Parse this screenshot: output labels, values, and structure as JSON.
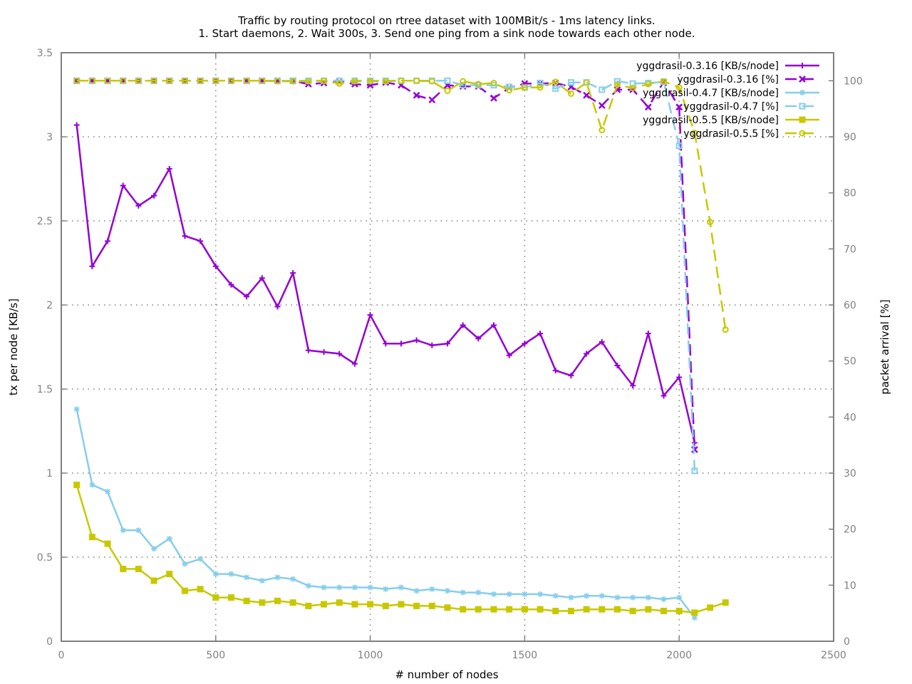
{
  "chart_data": {
    "type": "line",
    "title_lines": [
      "Traffic by routing protocol on rtree dataset with 100MBit/s - 1ms latency links.",
      "1. Start daemons, 2. Wait 300s, 3. Send one ping from a sink node towards each other node."
    ],
    "xlabel": "# number of nodes",
    "ylabel": "tx per node [KB/s]",
    "y2label": "packet arrival [%]",
    "xlim": [
      0,
      2500
    ],
    "ylim": [
      0,
      3.5
    ],
    "y2lim": [
      0,
      105
    ],
    "x_ticks": [
      "0",
      "500",
      "1000",
      "1500",
      "2000",
      "2500"
    ],
    "y_ticks": [
      "0",
      "0.5",
      "1",
      "1.5",
      "2",
      "2.5",
      "3",
      "3.5"
    ],
    "y2_ticks": [
      "0",
      "10",
      "20",
      "30",
      "40",
      "50",
      "60",
      "70",
      "80",
      "90",
      "100"
    ],
    "grid": true,
    "legend_position": "top-right",
    "series": [
      {
        "name": "yggdrasil-0.3.16 [KB/s/node]",
        "axis": "y",
        "color": "#9400d3",
        "style": "solid",
        "marker": "plus",
        "x": [
          50,
          100,
          150,
          200,
          250,
          300,
          350,
          400,
          450,
          500,
          550,
          600,
          650,
          700,
          750,
          800,
          850,
          900,
          950,
          1000,
          1050,
          1100,
          1150,
          1200,
          1250,
          1300,
          1350,
          1400,
          1450,
          1500,
          1550,
          1600,
          1650,
          1700,
          1750,
          1800,
          1850,
          1900,
          1950,
          2000,
          2050
        ],
        "y": [
          3.07,
          2.23,
          2.38,
          2.71,
          2.59,
          2.65,
          2.81,
          2.41,
          2.38,
          2.23,
          2.12,
          2.05,
          2.16,
          1.99,
          2.19,
          1.73,
          1.72,
          1.71,
          1.65,
          1.94,
          1.77,
          1.77,
          1.79,
          1.76,
          1.77,
          1.88,
          1.8,
          1.88,
          1.7,
          1.77,
          1.83,
          1.61,
          1.58,
          1.71,
          1.78,
          1.64,
          1.52,
          1.83,
          1.46,
          1.57,
          1.18
        ]
      },
      {
        "name": "yggdrasil-0.3.16 [%]",
        "axis": "y2",
        "color": "#9400d3",
        "style": "dashed",
        "marker": "x",
        "x": [
          50,
          100,
          150,
          200,
          250,
          300,
          350,
          400,
          450,
          500,
          550,
          600,
          650,
          700,
          750,
          800,
          850,
          900,
          950,
          1000,
          1050,
          1100,
          1150,
          1200,
          1250,
          1300,
          1350,
          1400,
          1450,
          1500,
          1550,
          1600,
          1650,
          1700,
          1750,
          1800,
          1850,
          1900,
          1950,
          2000,
          2050
        ],
        "y": [
          100,
          100,
          100,
          100,
          100,
          100,
          100,
          100,
          100,
          100,
          100,
          100,
          100,
          100,
          100,
          99.4,
          99.6,
          99.8,
          99.4,
          99.2,
          99.7,
          99.2,
          97.4,
          96.6,
          99.2,
          99,
          99,
          96.9,
          98.7,
          99.5,
          99.5,
          99.6,
          98.9,
          97.4,
          95.6,
          98.4,
          98.4,
          95.3,
          99.8,
          95.3,
          34.2
        ]
      },
      {
        "name": "yggdrasil-0.4.7 [KB/s/node]",
        "axis": "y",
        "color": "#87ceeb",
        "style": "solid",
        "marker": "star",
        "x": [
          50,
          100,
          150,
          200,
          250,
          300,
          350,
          400,
          450,
          500,
          550,
          600,
          650,
          700,
          750,
          800,
          850,
          900,
          950,
          1000,
          1050,
          1100,
          1150,
          1200,
          1250,
          1300,
          1350,
          1400,
          1450,
          1500,
          1550,
          1600,
          1650,
          1700,
          1750,
          1800,
          1850,
          1900,
          1950,
          2000,
          2050
        ],
        "y": [
          1.38,
          0.93,
          0.89,
          0.66,
          0.66,
          0.55,
          0.61,
          0.46,
          0.49,
          0.4,
          0.4,
          0.38,
          0.36,
          0.38,
          0.37,
          0.33,
          0.32,
          0.32,
          0.32,
          0.32,
          0.31,
          0.32,
          0.3,
          0.31,
          0.3,
          0.29,
          0.29,
          0.28,
          0.28,
          0.28,
          0.28,
          0.27,
          0.26,
          0.27,
          0.27,
          0.26,
          0.26,
          0.26,
          0.25,
          0.26,
          0.14
        ]
      },
      {
        "name": "yggdrasil-0.4.7 [%]",
        "axis": "y2",
        "color": "#87ceeb",
        "style": "dashed",
        "marker": "square-open",
        "x": [
          50,
          100,
          150,
          200,
          250,
          300,
          350,
          400,
          450,
          500,
          550,
          600,
          650,
          700,
          750,
          800,
          850,
          900,
          950,
          1000,
          1050,
          1100,
          1150,
          1200,
          1250,
          1300,
          1350,
          1400,
          1450,
          1500,
          1550,
          1600,
          1650,
          1700,
          1750,
          1800,
          1850,
          1900,
          1950,
          2000,
          2050
        ],
        "y": [
          100,
          100,
          100,
          100,
          100,
          100,
          100,
          100,
          100,
          100,
          100,
          100,
          100,
          100,
          100,
          100,
          100,
          100,
          100,
          100,
          100,
          100,
          100,
          100,
          100,
          99.2,
          99.2,
          99.2,
          98.9,
          98.8,
          99.6,
          98.6,
          99.7,
          99.7,
          98.4,
          99.9,
          99.5,
          99.6,
          99.8,
          88.4,
          30.4
        ]
      },
      {
        "name": "yggdrasil-0.5.5 [KB/s/node]",
        "axis": "y",
        "color": "#c8c800",
        "style": "solid",
        "marker": "square-filled",
        "x": [
          50,
          100,
          150,
          200,
          250,
          300,
          350,
          400,
          450,
          500,
          550,
          600,
          650,
          700,
          750,
          800,
          850,
          900,
          950,
          1000,
          1050,
          1100,
          1150,
          1200,
          1250,
          1300,
          1350,
          1400,
          1450,
          1500,
          1550,
          1600,
          1650,
          1700,
          1750,
          1800,
          1850,
          1900,
          1950,
          2000,
          2050,
          2100,
          2150
        ],
        "y": [
          0.93,
          0.62,
          0.58,
          0.43,
          0.43,
          0.36,
          0.4,
          0.3,
          0.31,
          0.26,
          0.26,
          0.24,
          0.23,
          0.24,
          0.23,
          0.21,
          0.22,
          0.23,
          0.22,
          0.22,
          0.21,
          0.22,
          0.21,
          0.21,
          0.2,
          0.19,
          0.19,
          0.19,
          0.19,
          0.19,
          0.19,
          0.18,
          0.18,
          0.19,
          0.19,
          0.19,
          0.18,
          0.19,
          0.18,
          0.18,
          0.17,
          0.2,
          0.23
        ]
      },
      {
        "name": "yggdrasil-0.5.5 [%]",
        "axis": "y2",
        "color": "#c8c800",
        "style": "dashed",
        "marker": "circle-open",
        "x": [
          50,
          100,
          150,
          200,
          250,
          300,
          350,
          400,
          450,
          500,
          550,
          600,
          650,
          700,
          750,
          800,
          850,
          900,
          950,
          1000,
          1050,
          1100,
          1150,
          1200,
          1250,
          1300,
          1350,
          1400,
          1450,
          1500,
          1550,
          1600,
          1650,
          1700,
          1750,
          1800,
          1850,
          1900,
          1950,
          2000,
          2050,
          2100,
          2150
        ],
        "y": [
          100,
          100,
          100,
          100,
          100,
          100,
          100,
          100,
          100,
          100,
          100,
          100,
          100,
          99.9,
          99.9,
          99.9,
          100,
          99.5,
          99.9,
          99.9,
          99.9,
          100,
          100,
          99.9,
          98.2,
          99.9,
          99.4,
          99.6,
          98.3,
          98.8,
          98.8,
          99.8,
          97.7,
          99.7,
          91.2,
          99.3,
          98.7,
          99.4,
          99.9,
          98.8,
          90.7,
          74.8,
          55.6
        ]
      }
    ]
  }
}
